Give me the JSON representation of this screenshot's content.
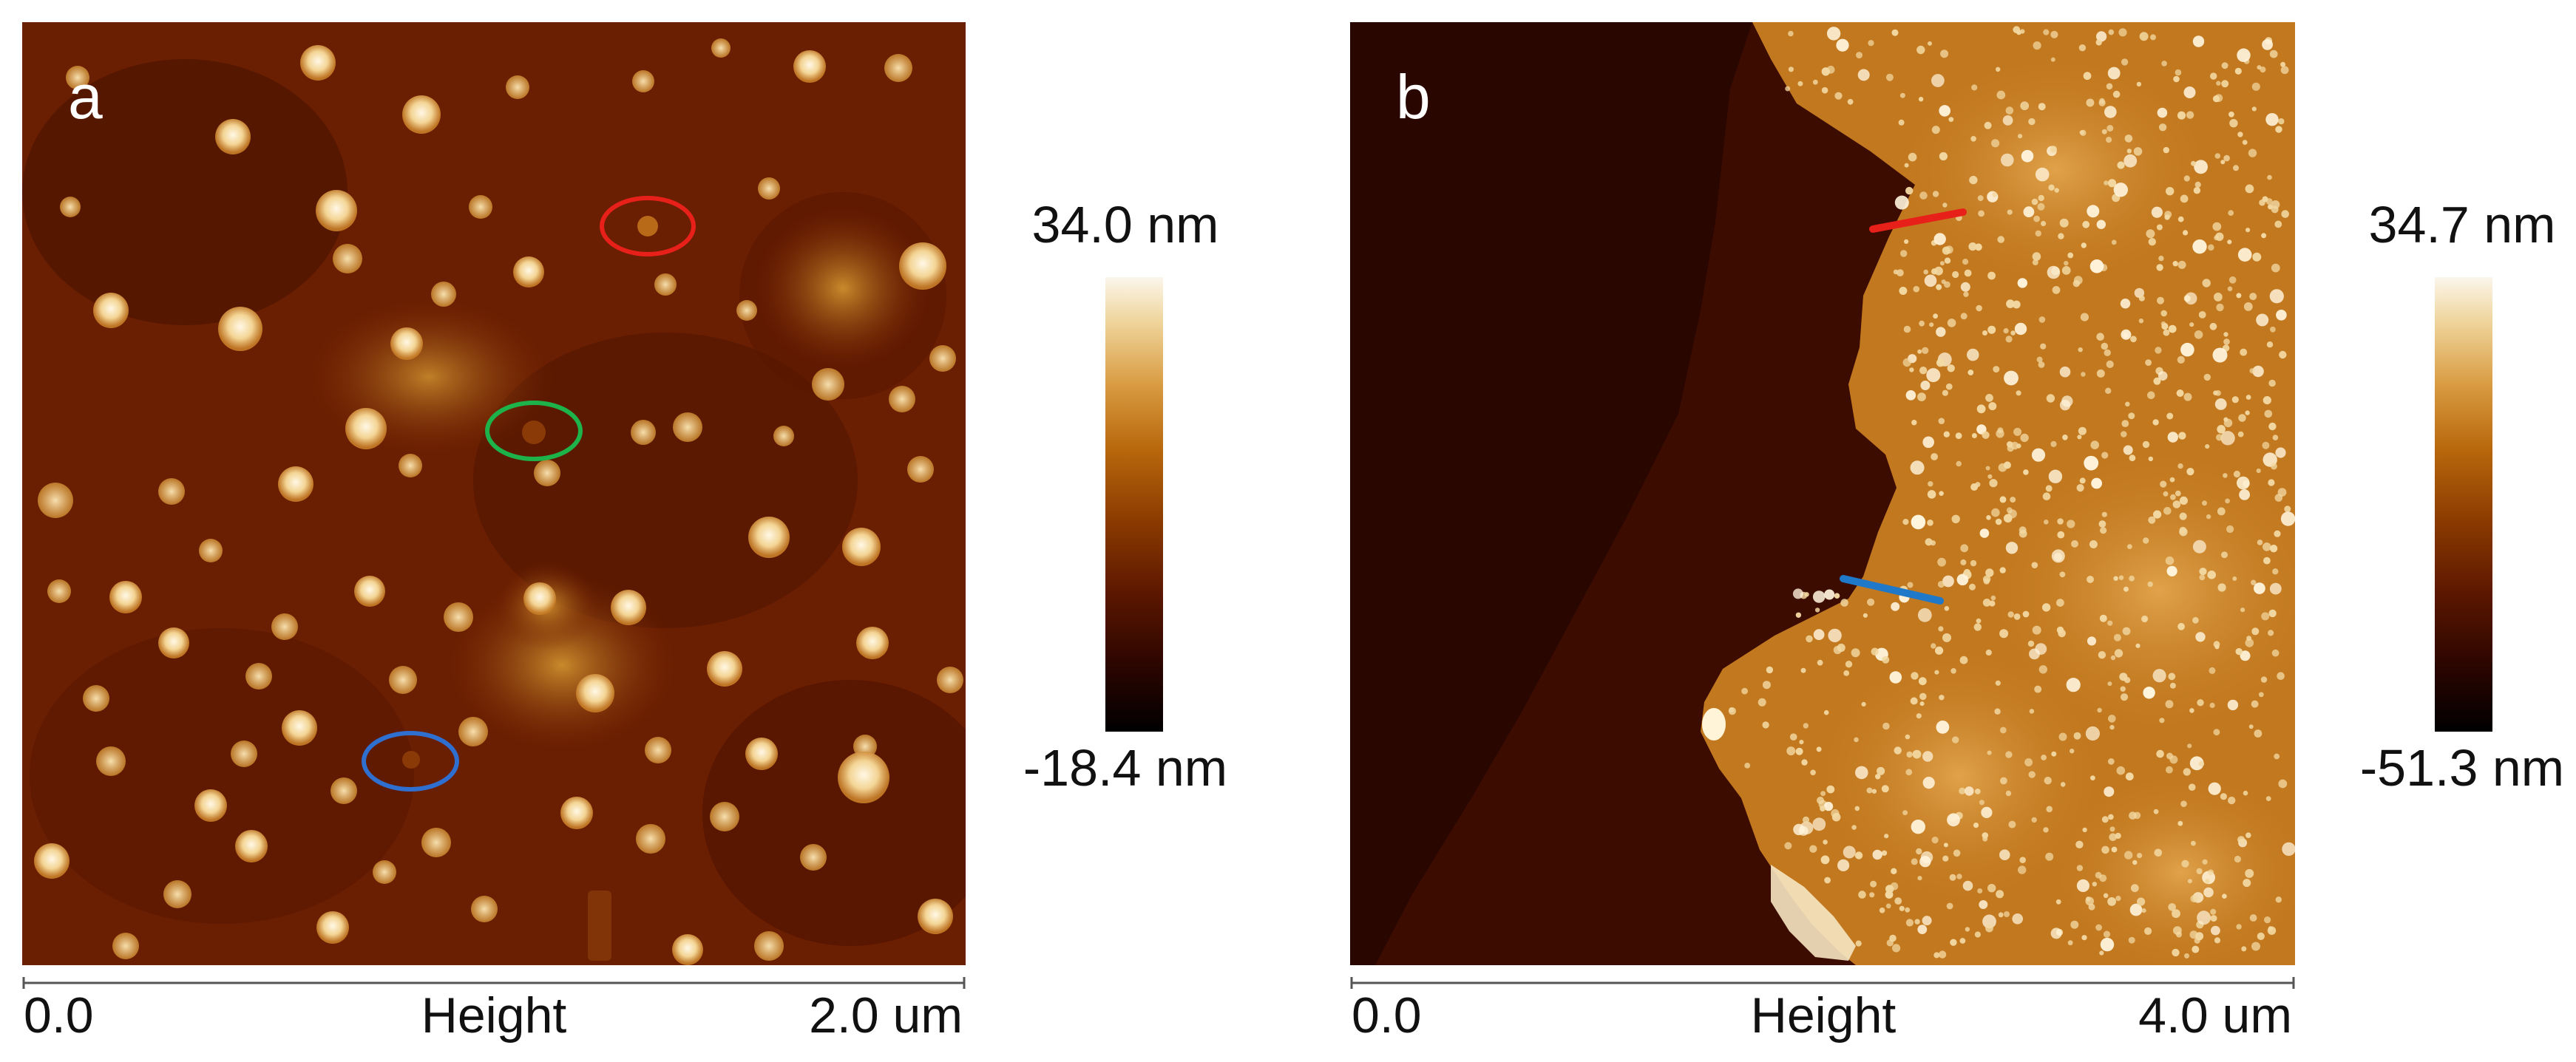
{
  "panels": [
    {
      "letter": "a",
      "scale_max": "34.0 nm",
      "scale_min": "-18.4 nm",
      "axis_start": "0.0",
      "axis_title": "Height",
      "axis_end": "2.0 um",
      "marker_colors": [
        "#e8201a",
        "#1db34a",
        "#2f6fd0"
      ]
    },
    {
      "letter": "b",
      "scale_max": "34.7 nm",
      "scale_min": "-51.3 nm",
      "axis_start": "0.0",
      "axis_title": "Height",
      "axis_end": "4.0 um",
      "marker_colors": [
        "#e8201a",
        "#1f78c8"
      ]
    }
  ],
  "colormap": [
    "#000000",
    "#2a0500",
    "#5a1600",
    "#8a3a00",
    "#b8670c",
    "#d89a40",
    "#efd49a",
    "#fbf6ec"
  ]
}
